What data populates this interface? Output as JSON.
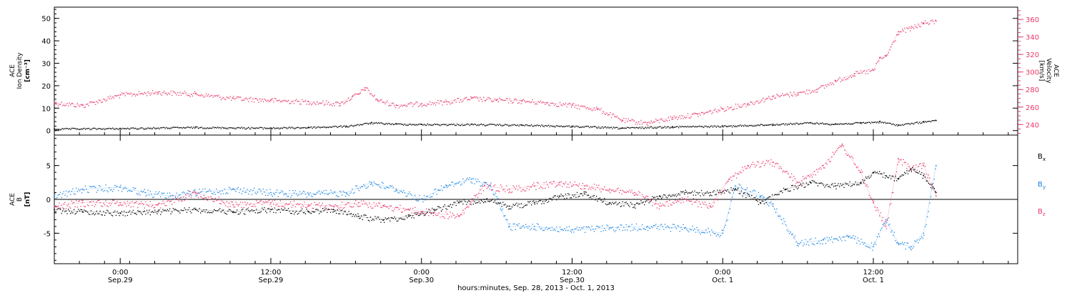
{
  "colors": {
    "black": "#000000",
    "pink": "#e8386a",
    "blue": "#1c84e0"
  },
  "chart_data": [
    {
      "type": "scatter",
      "panel": "top",
      "left_axis_label": [
        "ACE",
        "Ion Density",
        "[cm⁻³]"
      ],
      "right_axis_label": [
        "ACE",
        "Velocity",
        "[km/s]"
      ],
      "x_range": [
        "2013-09-28 18:45",
        "2013-10-01 23:30"
      ],
      "left_ylim": [
        -2,
        55
      ],
      "left_ticks": [
        "0",
        "10",
        "20",
        "30",
        "40",
        "50"
      ],
      "right_ylim": [
        228,
        374
      ],
      "right_ticks": [
        "240",
        "260",
        "280",
        "300",
        "320",
        "340",
        "360"
      ],
      "series": [
        {
          "name": "Ion Density",
          "axis": "left",
          "color": "#000000",
          "x": [
            "2013-09-28 18:45",
            "2013-09-29 00:00",
            "2013-09-29 06:00",
            "2013-09-29 12:00",
            "2013-09-29 15:00",
            "2013-09-29 18:00",
            "2013-09-29 20:00",
            "2013-09-29 22:00",
            "2013-09-30 00:00",
            "2013-09-30 04:00",
            "2013-09-30 08:00",
            "2013-09-30 12:00",
            "2013-09-30 16:00",
            "2013-09-30 20:00",
            "2013-10-01 00:00",
            "2013-10-01 04:00",
            "2013-10-01 07:00",
            "2013-10-01 09:00",
            "2013-10-01 11:00",
            "2013-10-01 12:30",
            "2013-10-01 14:00",
            "2013-10-01 16:00",
            "2013-10-01 17:00"
          ],
          "y": [
            0.8,
            1.0,
            1.5,
            1.2,
            1.5,
            2.0,
            3.5,
            3.0,
            2.8,
            2.8,
            2.5,
            2.0,
            1.2,
            1.8,
            2.0,
            2.8,
            3.5,
            3.0,
            3.5,
            4.0,
            2.5,
            4.0,
            4.5
          ]
        },
        {
          "name": "Velocity",
          "axis": "right",
          "color": "#e8386a",
          "x": [
            "2013-09-28 18:45",
            "2013-09-28 21:00",
            "2013-09-29 00:00",
            "2013-09-29 03:00",
            "2013-09-29 06:00",
            "2013-09-29 09:00",
            "2013-09-29 12:00",
            "2013-09-29 15:00",
            "2013-09-29 17:30",
            "2013-09-29 18:30",
            "2013-09-29 19:00",
            "2013-09-29 19:30",
            "2013-09-29 20:30",
            "2013-09-29 22:00",
            "2013-09-30 00:00",
            "2013-09-30 02:00",
            "2013-09-30 04:00",
            "2013-09-30 06:00",
            "2013-09-30 08:00",
            "2013-09-30 10:00",
            "2013-09-30 12:00",
            "2013-09-30 14:00",
            "2013-09-30 16:00",
            "2013-09-30 18:00",
            "2013-09-30 20:00",
            "2013-09-30 22:00",
            "2013-10-01 00:00",
            "2013-10-01 02:00",
            "2013-10-01 04:00",
            "2013-10-01 06:00",
            "2013-10-01 07:30",
            "2013-10-01 09:00",
            "2013-10-01 10:30",
            "2013-10-01 12:00",
            "2013-10-01 12:30",
            "2013-10-01 13:00",
            "2013-10-01 14:00",
            "2013-10-01 15:00",
            "2013-10-01 16:00",
            "2013-10-01 17:00"
          ],
          "y": [
            265,
            262,
            274,
            277,
            275,
            270,
            268,
            266,
            264,
            272,
            275,
            282,
            268,
            262,
            264,
            266,
            270,
            268,
            267,
            265,
            262,
            258,
            245,
            242,
            248,
            252,
            258,
            264,
            272,
            276,
            280,
            290,
            298,
            302,
            316,
            318,
            346,
            350,
            356,
            358
          ]
        }
      ]
    },
    {
      "type": "scatter",
      "panel": "bottom",
      "left_axis_label": [
        "ACE",
        "B",
        "[nT]"
      ],
      "x_range": [
        "2013-09-28 18:45",
        "2013-10-01 23:30"
      ],
      "ylim": [
        -9.5,
        9.5
      ],
      "y_ticks": [
        "-5",
        "0",
        "5"
      ],
      "zero_line": true,
      "series": [
        {
          "name": "Bx",
          "color": "#000000",
          "x": [
            "2013-09-28 18:45",
            "2013-09-28 21:00",
            "2013-09-29 00:00",
            "2013-09-29 03:00",
            "2013-09-29 06:00",
            "2013-09-29 09:00",
            "2013-09-29 12:00",
            "2013-09-29 15:00",
            "2013-09-29 17:00",
            "2013-09-29 19:00",
            "2013-09-29 21:00",
            "2013-09-29 23:00",
            "2013-09-30 01:00",
            "2013-09-30 03:00",
            "2013-09-30 05:00",
            "2013-09-30 07:00",
            "2013-09-30 09:00",
            "2013-09-30 11:00",
            "2013-09-30 13:00",
            "2013-09-30 15:00",
            "2013-09-30 17:00",
            "2013-09-30 19:00",
            "2013-09-30 21:00",
            "2013-09-30 23:00",
            "2013-10-01 01:00",
            "2013-10-01 03:00",
            "2013-10-01 05:00",
            "2013-10-01 07:00",
            "2013-10-01 09:00",
            "2013-10-01 11:00",
            "2013-10-01 12:00",
            "2013-10-01 13:00",
            "2013-10-01 14:00",
            "2013-10-01 15:00",
            "2013-10-01 16:00",
            "2013-10-01 17:00"
          ],
          "y": [
            -1.5,
            -1.8,
            -2.0,
            -1.8,
            -1.5,
            -1.8,
            -1.5,
            -1.8,
            -1.5,
            -2.5,
            -3.0,
            -2.5,
            -1.5,
            -0.5,
            0.0,
            -1.0,
            -0.5,
            0.5,
            0.8,
            -0.5,
            -0.8,
            0.5,
            1.0,
            1.0,
            1.5,
            -0.5,
            1.5,
            2.5,
            2.0,
            2.5,
            4.0,
            3.5,
            3.0,
            4.5,
            3.5,
            1.0
          ]
        },
        {
          "name": "By",
          "color": "#1c84e0",
          "x": [
            "2013-09-28 18:45",
            "2013-09-28 21:00",
            "2013-09-29 00:00",
            "2013-09-29 02:00",
            "2013-09-29 04:00",
            "2013-09-29 06:00",
            "2013-09-29 09:00",
            "2013-09-29 12:00",
            "2013-09-29 15:00",
            "2013-09-29 18:00",
            "2013-09-29 20:00",
            "2013-09-29 22:00",
            "2013-09-30 00:00",
            "2013-09-30 02:00",
            "2013-09-30 04:00",
            "2013-09-30 05:30",
            "2013-09-30 07:00",
            "2013-09-30 09:00",
            "2013-09-30 12:00",
            "2013-09-30 15:00",
            "2013-09-30 18:00",
            "2013-09-30 21:00",
            "2013-10-01 00:00",
            "2013-10-01 01:00",
            "2013-10-01 03:00",
            "2013-10-01 04:00",
            "2013-10-01 06:00",
            "2013-10-01 08:00",
            "2013-10-01 10:00",
            "2013-10-01 12:00",
            "2013-10-01 13:00",
            "2013-10-01 14:00",
            "2013-10-01 15:00",
            "2013-10-01 16:00",
            "2013-10-01 17:00"
          ],
          "y": [
            0.5,
            1.5,
            1.8,
            1.0,
            0.5,
            1.0,
            1.5,
            1.0,
            0.8,
            1.0,
            2.5,
            1.5,
            0.0,
            2.0,
            3.0,
            2.0,
            -4.0,
            -4.0,
            -4.5,
            -4.2,
            -4.0,
            -4.2,
            -5.0,
            2.0,
            0.5,
            -1.0,
            -6.5,
            -6.0,
            -5.5,
            -7.0,
            -3.0,
            -6.5,
            -7.0,
            -5.0,
            5.0
          ]
        },
        {
          "name": "Bz",
          "color": "#e8386a",
          "x": [
            "2013-09-28 18:45",
            "2013-09-28 21:00",
            "2013-09-29 00:00",
            "2013-09-29 03:00",
            "2013-09-29 06:00",
            "2013-09-29 09:00",
            "2013-09-29 12:00",
            "2013-09-29 15:00",
            "2013-09-29 17:00",
            "2013-09-29 19:00",
            "2013-09-29 21:00",
            "2013-09-29 23:00",
            "2013-09-30 01:00",
            "2013-09-30 03:00",
            "2013-09-30 05:00",
            "2013-09-30 07:00",
            "2013-09-30 09:00",
            "2013-09-30 11:00",
            "2013-09-30 13:00",
            "2013-09-30 15:00",
            "2013-09-30 17:00",
            "2013-09-30 19:00",
            "2013-09-30 21:00",
            "2013-09-30 23:00",
            "2013-10-01 00:30",
            "2013-10-01 02:00",
            "2013-10-01 04:00",
            "2013-10-01 06:00",
            "2013-10-01 08:00",
            "2013-10-01 09:30",
            "2013-10-01 11:00",
            "2013-10-01 12:00",
            "2013-10-01 13:00",
            "2013-10-01 14:00",
            "2013-10-01 15:00",
            "2013-10-01 16:00",
            "2013-10-01 17:00"
          ],
          "y": [
            -1.0,
            -0.5,
            -0.5,
            -0.8,
            1.0,
            -0.8,
            -0.5,
            -0.8,
            -1.0,
            -0.5,
            -1.0,
            -1.5,
            -2.0,
            -2.5,
            2.0,
            1.5,
            2.0,
            2.5,
            2.0,
            1.5,
            1.0,
            -1.0,
            0.0,
            -1.0,
            3.0,
            5.0,
            5.5,
            2.5,
            5.0,
            8.0,
            4.0,
            -0.5,
            -4.0,
            6.0,
            4.5,
            5.0,
            0.5
          ]
        }
      ]
    }
  ],
  "axis": {
    "x_ticks": [
      {
        "time": "0:00",
        "date": "Sep.29",
        "at": "2013-09-29 00:00"
      },
      {
        "time": "12:00",
        "date": "Sep.29",
        "at": "2013-09-29 12:00"
      },
      {
        "time": "0:00",
        "date": "Sep.30",
        "at": "2013-09-30 00:00"
      },
      {
        "time": "12:00",
        "date": "Sep.30",
        "at": "2013-09-30 12:00"
      },
      {
        "time": "0:00",
        "date": "Oct. 1",
        "at": "2013-10-01 00:00"
      },
      {
        "time": "12:00",
        "date": "Oct. 1",
        "at": "2013-10-01 12:00"
      }
    ],
    "xlabel": "hours:minutes, Sep. 28, 2013 - Oct. 1, 2013"
  },
  "legend": [
    {
      "main": "B",
      "sub": "x",
      "color": "#000000"
    },
    {
      "main": "B",
      "sub": "y",
      "color": "#1c84e0"
    },
    {
      "main": "B",
      "sub": "z",
      "color": "#e8386a"
    }
  ]
}
